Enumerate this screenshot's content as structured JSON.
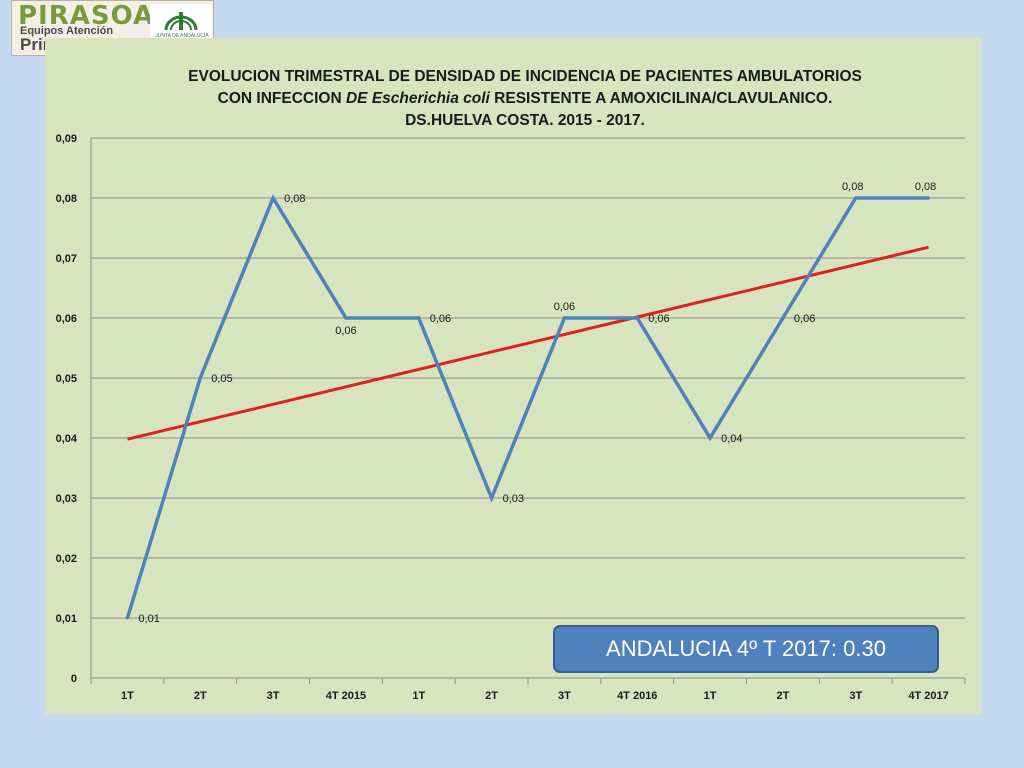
{
  "logo": {
    "word": "PIRASOA",
    "line1": "Equipos Atención",
    "line2": "Primaria",
    "emblem_text": "JUNTA DE ANDALUCIA"
  },
  "chart_data": {
    "type": "line",
    "title_parts": {
      "line1": "EVOLUCION TRIMESTRAL DE DENSIDAD DE INCIDENCIA DE PACIENTES AMBULATORIOS",
      "line2_a": "CON INFECCION ",
      "line2_b": "DE Escherichia coli",
      "line2_c": " RESISTENTE A AMOXICILINA/CLAVULANICO.",
      "line3": "DS.HUELVA COSTA. 2015 - 2017."
    },
    "categories": [
      "1T",
      "2T",
      "3T",
      "4T 2015",
      "1T",
      "2T",
      "3T",
      "4T 2016",
      "1T",
      "2T",
      "3T",
      "4T 2017"
    ],
    "series": [
      {
        "values": [
          0.01,
          0.05,
          0.08,
          0.06,
          0.06,
          0.03,
          0.06,
          0.06,
          0.04,
          0.06,
          0.08,
          0.08
        ],
        "data_labels": [
          "0,01",
          "0,05",
          "0,08",
          "0,06",
          "0,06",
          "0,03",
          "0,06",
          "0,06",
          "0,04",
          "0,06",
          "0,08",
          "0,08"
        ],
        "color": "#4f81bd"
      }
    ],
    "trendline": {
      "start": 0.0398,
      "end": 0.0718,
      "color": "#e02020"
    },
    "ylim": [
      0,
      0.09
    ],
    "yticks": [
      0,
      0.01,
      0.02,
      0.03,
      0.04,
      0.05,
      0.06,
      0.07,
      0.08,
      0.09
    ],
    "ytick_labels": [
      "0",
      "0,01",
      "0,02",
      "0,03",
      "0,04",
      "0,05",
      "0,06",
      "0,07",
      "0,08",
      "0,09"
    ],
    "grid": true,
    "legend": "none"
  },
  "callout": {
    "text": "ANDALUCIA 4º T 2017: 0.30"
  },
  "colors": {
    "background": "#c5d9f1",
    "plot_area": "#d7e4bd",
    "line": "#4f81bd",
    "trend": "#e02020",
    "callout": "#4f81bd"
  }
}
